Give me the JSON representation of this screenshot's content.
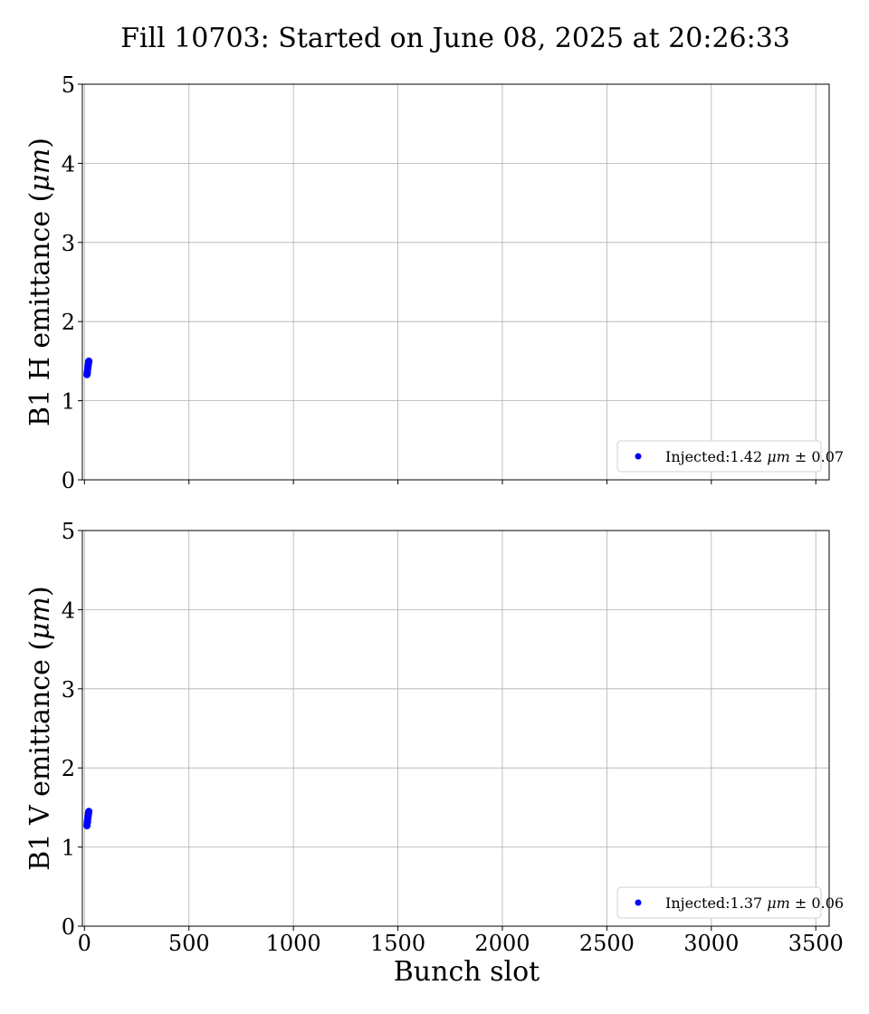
{
  "figure": {
    "title": "Fill 10703: Started on June 08, 2025 at 20:26:33"
  },
  "chart_data": [
    {
      "type": "scatter",
      "ylabel_prefix": "B1 H emittance (",
      "ylabel_unit": "μm",
      "ylabel_suffix": ")",
      "xlabel": "",
      "xlim": [
        -10,
        3564
      ],
      "ylim": [
        0,
        5
      ],
      "xticks": [
        0,
        500,
        1000,
        1500,
        2000,
        2500,
        3000,
        3500
      ],
      "yticks": [
        0,
        1,
        2,
        3,
        4,
        5
      ],
      "show_x_tick_labels": false,
      "grid": true,
      "legend_position": "lower-right",
      "series": [
        {
          "name_prefix": "Injected:1.42 ",
          "name_unit": "μm",
          "name_suffix": " ± 0.07",
          "color": "#0000ff",
          "x": [
            12,
            13,
            14,
            15,
            16,
            17,
            18,
            19,
            20,
            21
          ],
          "y": [
            1.33,
            1.36,
            1.35,
            1.39,
            1.42,
            1.44,
            1.45,
            1.47,
            1.49,
            1.5
          ]
        }
      ]
    },
    {
      "type": "scatter",
      "ylabel_prefix": "B1 V emittance (",
      "ylabel_unit": "μm",
      "ylabel_suffix": ")",
      "xlabel": "Bunch slot",
      "xlim": [
        -10,
        3564
      ],
      "ylim": [
        0,
        5
      ],
      "xticks": [
        0,
        500,
        1000,
        1500,
        2000,
        2500,
        3000,
        3500
      ],
      "yticks": [
        0,
        1,
        2,
        3,
        4,
        5
      ],
      "show_x_tick_labels": true,
      "grid": true,
      "legend_position": "lower-right",
      "series": [
        {
          "name_prefix": "Injected:1.37 ",
          "name_unit": "μm",
          "name_suffix": " ± 0.06",
          "color": "#0000ff",
          "x": [
            12,
            13,
            14,
            15,
            16,
            17,
            18,
            19,
            20,
            21
          ],
          "y": [
            1.27,
            1.3,
            1.33,
            1.32,
            1.36,
            1.38,
            1.4,
            1.42,
            1.44,
            1.45
          ]
        }
      ]
    }
  ]
}
